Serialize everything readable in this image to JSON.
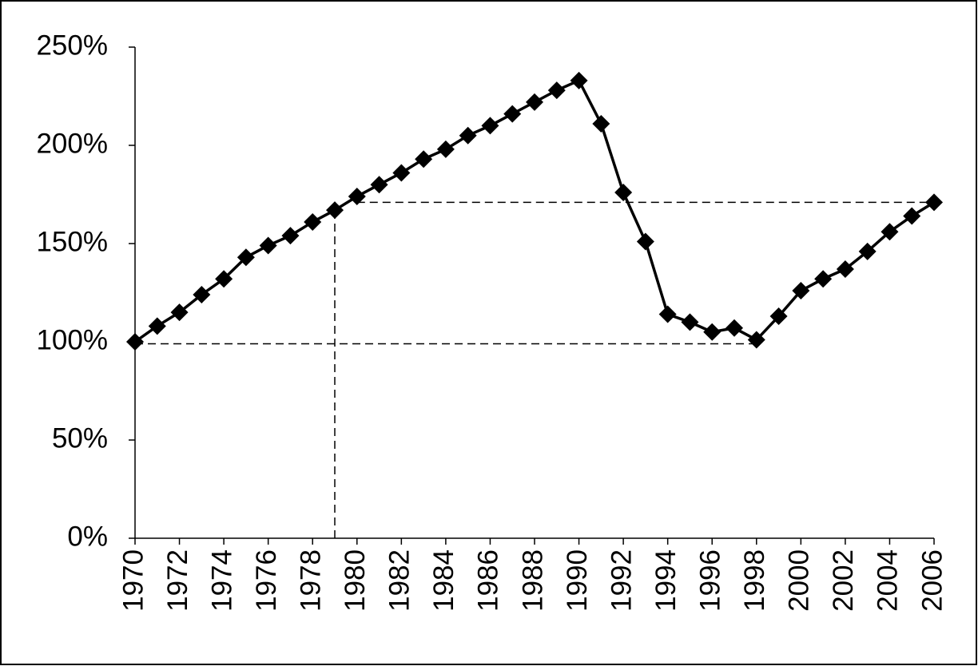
{
  "chart_data": {
    "type": "line",
    "x": [
      1970,
      1971,
      1972,
      1973,
      1974,
      1975,
      1976,
      1977,
      1978,
      1979,
      1980,
      1981,
      1982,
      1983,
      1984,
      1985,
      1986,
      1987,
      1988,
      1989,
      1990,
      1991,
      1992,
      1993,
      1994,
      1995,
      1996,
      1997,
      1998,
      1999,
      2000,
      2001,
      2002,
      2003,
      2004,
      2005,
      2006
    ],
    "values": [
      100,
      108,
      115,
      124,
      132,
      143,
      149,
      154,
      161,
      167,
      174,
      180,
      186,
      193,
      198,
      205,
      210,
      216,
      222,
      228,
      233,
      211,
      176,
      151,
      114,
      110,
      105,
      107,
      101,
      113,
      126,
      132,
      137,
      146,
      156,
      164,
      171
    ],
    "color": "#000000",
    "xlim": [
      1970,
      2006
    ],
    "xticks": [
      1970,
      1972,
      1974,
      1976,
      1978,
      1980,
      1982,
      1984,
      1986,
      1988,
      1990,
      1992,
      1994,
      1996,
      1998,
      2000,
      2002,
      2004,
      2006
    ],
    "ylim": [
      0,
      250
    ],
    "yticks": [
      {
        "value": 0,
        "label": "0%"
      },
      {
        "value": 50,
        "label": "50%"
      },
      {
        "value": 100,
        "label": "100%"
      },
      {
        "value": 150,
        "label": "150%"
      },
      {
        "value": 200,
        "label": "200%"
      },
      {
        "value": 250,
        "label": "250%"
      }
    ],
    "dashed_lines": [
      {
        "x": [
          1970,
          1998
        ],
        "y": [
          99,
          99
        ]
      },
      {
        "x": [
          1980,
          2006
        ],
        "y": [
          171,
          171
        ]
      },
      {
        "x": [
          1979,
          1979
        ],
        "y": [
          0,
          165
        ]
      }
    ]
  }
}
